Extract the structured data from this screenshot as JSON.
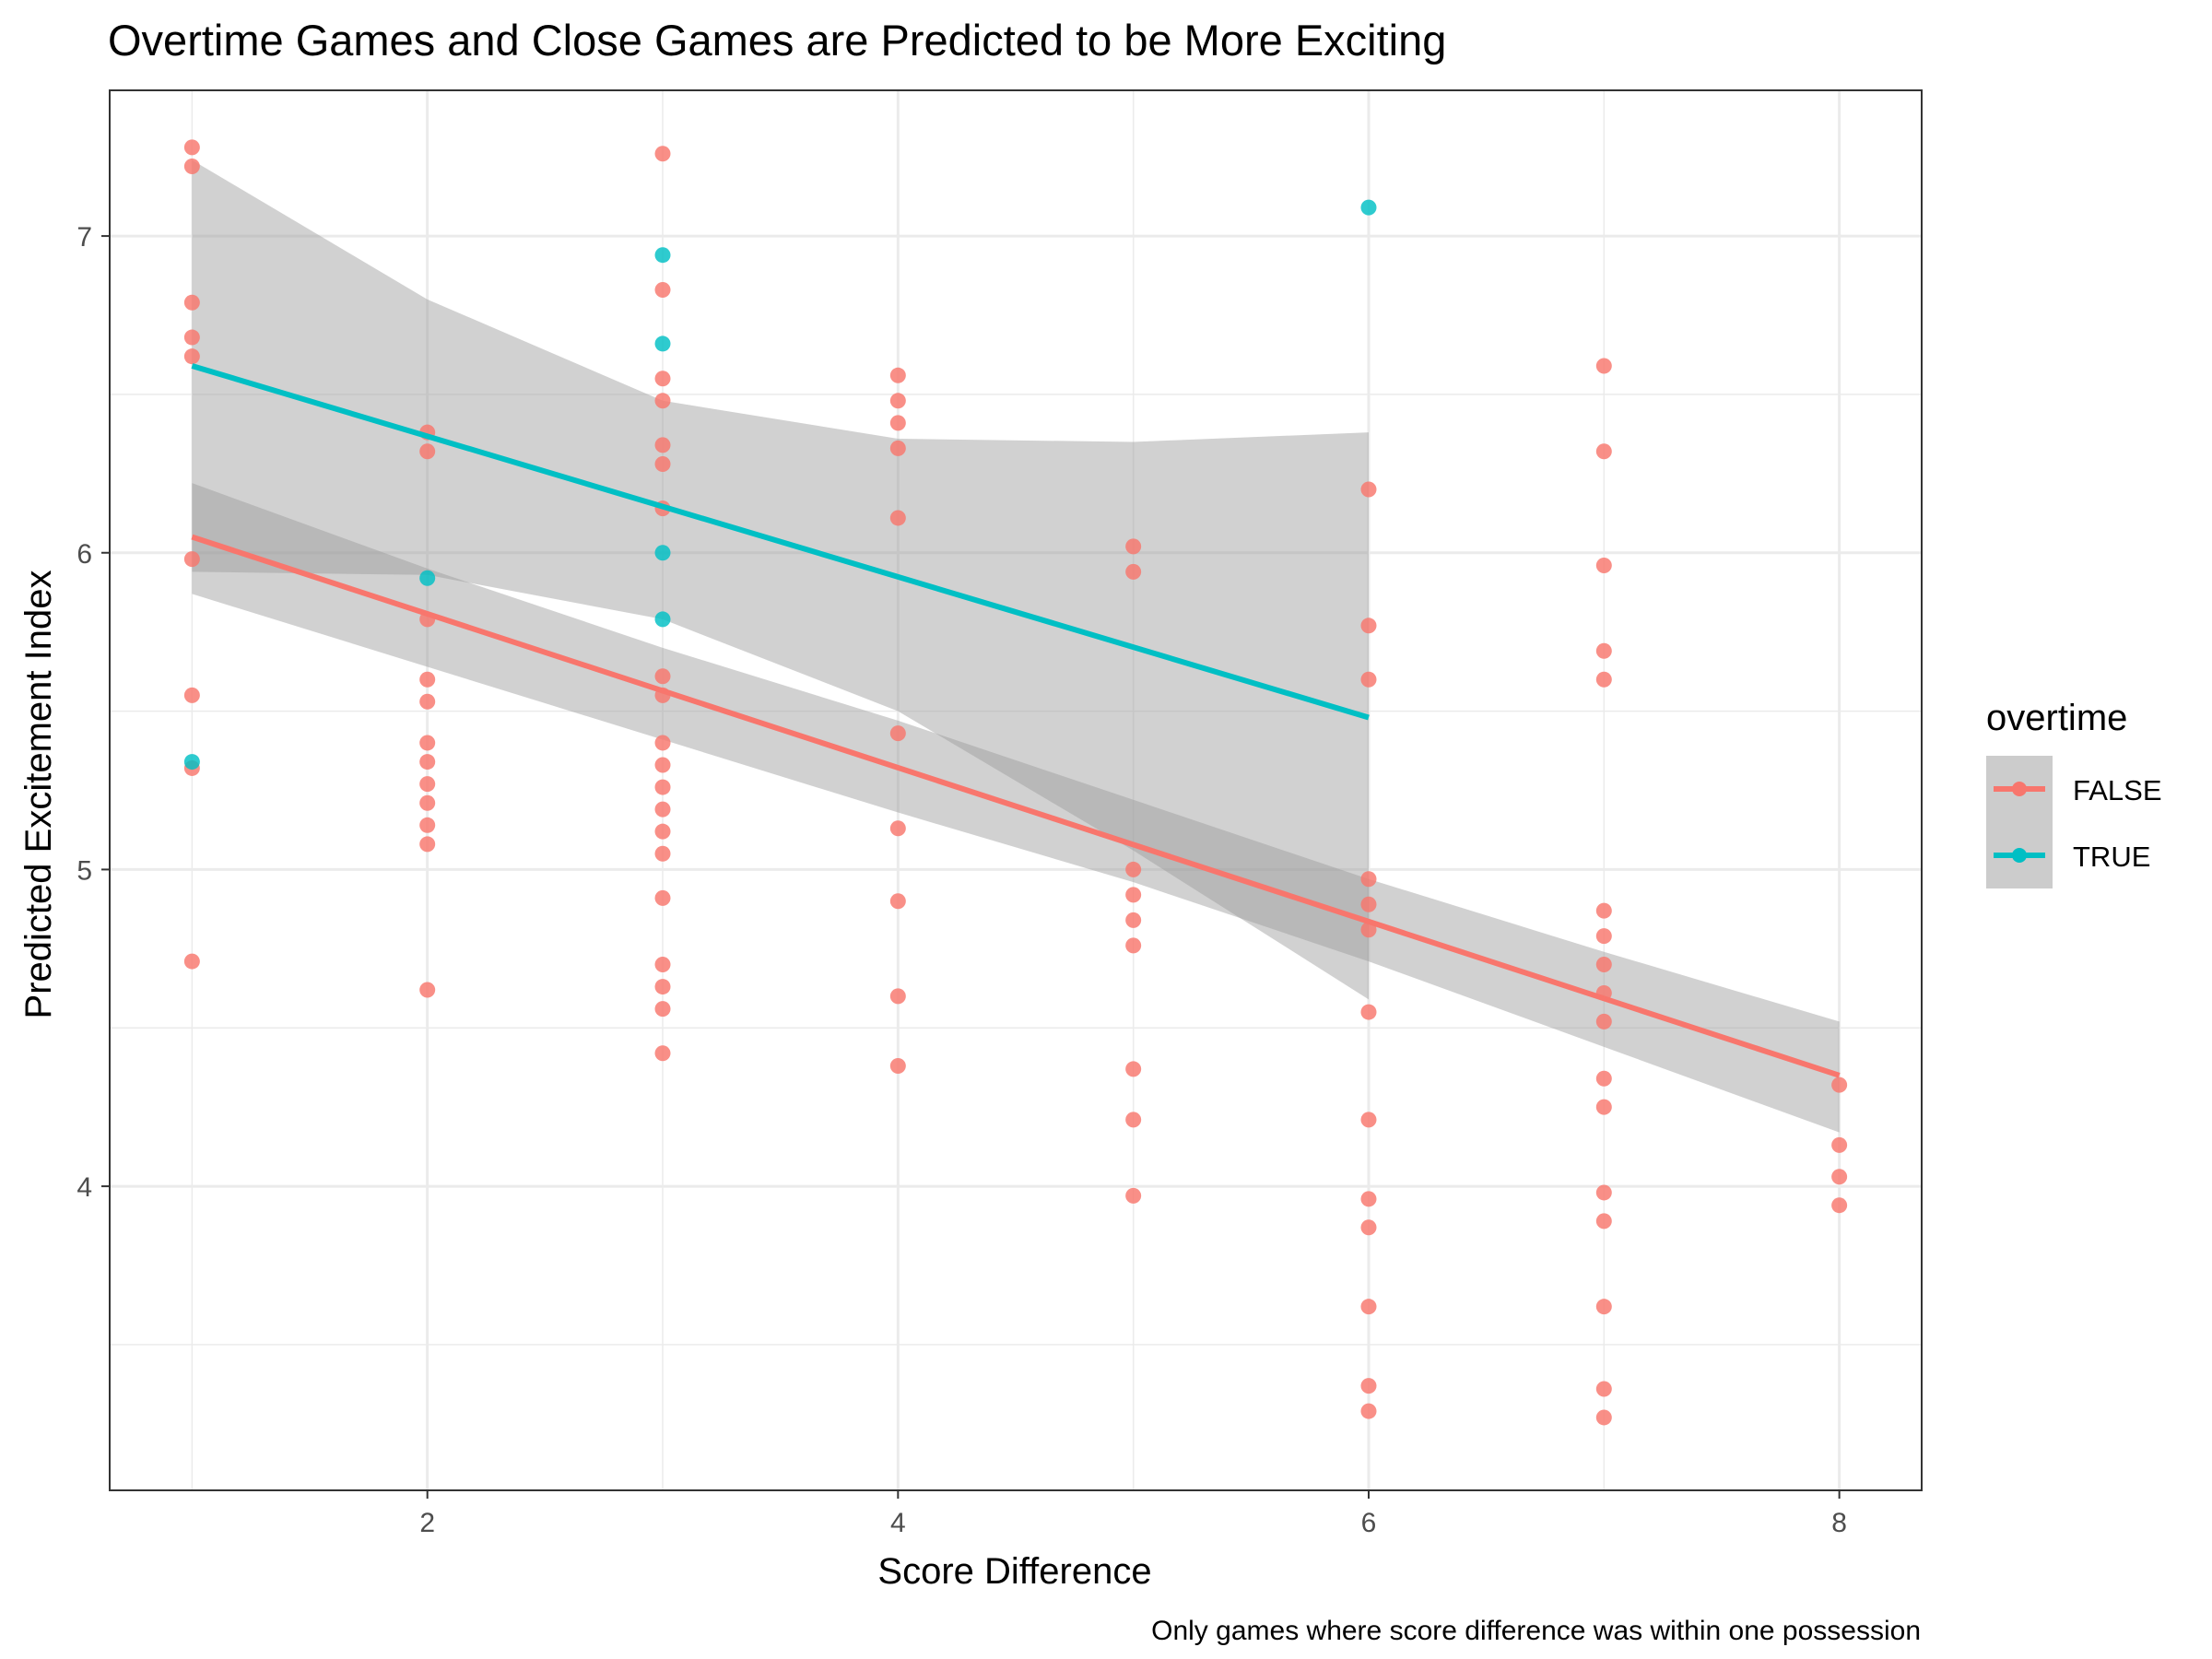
{
  "chart_data": {
    "type": "scatter",
    "title": "Overtime Games and Close Games are Predicted to be More Exciting",
    "xlabel": "Score Difference",
    "ylabel": "Predicted Excitement Index",
    "caption": "Only games where score difference was within one possession",
    "xlim": [
      0.65,
      8.35
    ],
    "ylim": [
      3.04,
      7.46
    ],
    "x_ticks": [
      2,
      4,
      6,
      8
    ],
    "y_ticks": [
      4,
      5,
      6,
      7
    ],
    "grid": true,
    "legend": {
      "title": "overtime",
      "placement": "right",
      "entries": [
        "FALSE",
        "TRUE"
      ]
    },
    "series": [
      {
        "name": "FALSE",
        "color": "#F8766D",
        "points": [
          [
            1,
            7.28
          ],
          [
            1,
            7.22
          ],
          [
            1,
            6.79
          ],
          [
            1,
            6.68
          ],
          [
            1,
            6.62
          ],
          [
            1,
            5.98
          ],
          [
            1,
            5.55
          ],
          [
            1,
            5.32
          ],
          [
            1,
            4.71
          ],
          [
            2,
            6.38
          ],
          [
            2,
            6.32
          ],
          [
            2,
            5.79
          ],
          [
            2,
            5.6
          ],
          [
            2,
            5.53
          ],
          [
            2,
            5.4
          ],
          [
            2,
            5.34
          ],
          [
            2,
            5.27
          ],
          [
            2,
            5.21
          ],
          [
            2,
            5.14
          ],
          [
            2,
            5.08
          ],
          [
            2,
            4.62
          ],
          [
            3,
            7.26
          ],
          [
            3,
            6.83
          ],
          [
            3,
            6.55
          ],
          [
            3,
            6.48
          ],
          [
            3,
            6.34
          ],
          [
            3,
            6.28
          ],
          [
            3,
            6.14
          ],
          [
            3,
            5.61
          ],
          [
            3,
            5.55
          ],
          [
            3,
            5.4
          ],
          [
            3,
            5.33
          ],
          [
            3,
            5.26
          ],
          [
            3,
            5.19
          ],
          [
            3,
            5.12
          ],
          [
            3,
            5.05
          ],
          [
            3,
            4.91
          ],
          [
            3,
            4.7
          ],
          [
            3,
            4.63
          ],
          [
            3,
            4.56
          ],
          [
            3,
            4.42
          ],
          [
            4,
            6.56
          ],
          [
            4,
            6.48
          ],
          [
            4,
            6.41
          ],
          [
            4,
            6.33
          ],
          [
            4,
            6.11
          ],
          [
            4,
            5.43
          ],
          [
            4,
            5.13
          ],
          [
            4,
            4.9
          ],
          [
            4,
            4.6
          ],
          [
            4,
            4.38
          ],
          [
            5,
            6.02
          ],
          [
            5,
            5.94
          ],
          [
            5,
            5.0
          ],
          [
            5,
            4.92
          ],
          [
            5,
            4.84
          ],
          [
            5,
            4.76
          ],
          [
            5,
            4.37
          ],
          [
            5,
            4.21
          ],
          [
            5,
            3.97
          ],
          [
            6,
            6.2
          ],
          [
            6,
            5.77
          ],
          [
            6,
            5.6
          ],
          [
            6,
            4.97
          ],
          [
            6,
            4.89
          ],
          [
            6,
            4.81
          ],
          [
            6,
            4.55
          ],
          [
            6,
            4.21
          ],
          [
            6,
            3.96
          ],
          [
            6,
            3.87
          ],
          [
            6,
            3.62
          ],
          [
            6,
            3.37
          ],
          [
            6,
            3.29
          ],
          [
            7,
            6.59
          ],
          [
            7,
            6.32
          ],
          [
            7,
            5.96
          ],
          [
            7,
            5.69
          ],
          [
            7,
            5.6
          ],
          [
            7,
            4.87
          ],
          [
            7,
            4.79
          ],
          [
            7,
            4.7
          ],
          [
            7,
            4.61
          ],
          [
            7,
            4.52
          ],
          [
            7,
            4.34
          ],
          [
            7,
            4.25
          ],
          [
            7,
            3.98
          ],
          [
            7,
            3.89
          ],
          [
            7,
            3.62
          ],
          [
            7,
            3.36
          ],
          [
            7,
            3.27
          ],
          [
            8,
            4.32
          ],
          [
            8,
            4.13
          ],
          [
            8,
            4.03
          ],
          [
            8,
            3.94
          ]
        ],
        "fit": {
          "x": [
            1,
            8
          ],
          "y": [
            6.05,
            4.35
          ]
        },
        "ci_upper": [
          [
            1,
            6.22
          ],
          [
            2,
            5.95
          ],
          [
            3,
            5.7
          ],
          [
            4,
            5.47
          ],
          [
            5,
            5.22
          ],
          [
            6,
            4.97
          ],
          [
            7,
            4.74
          ],
          [
            8,
            4.52
          ]
        ],
        "ci_lower": [
          [
            1,
            5.87
          ],
          [
            2,
            5.64
          ],
          [
            3,
            5.41
          ],
          [
            4,
            5.18
          ],
          [
            5,
            4.96
          ],
          [
            6,
            4.71
          ],
          [
            7,
            4.44
          ],
          [
            8,
            4.17
          ]
        ]
      },
      {
        "name": "TRUE",
        "color": "#00BFC4",
        "points": [
          [
            1,
            5.34
          ],
          [
            2,
            5.92
          ],
          [
            3,
            6.94
          ],
          [
            3,
            6.66
          ],
          [
            3,
            6.0
          ],
          [
            3,
            5.79
          ],
          [
            6,
            7.09
          ]
        ],
        "fit": {
          "x": [
            1,
            6
          ],
          "y": [
            6.59,
            5.48
          ]
        },
        "ci_upper": [
          [
            1,
            7.24
          ],
          [
            2,
            6.8
          ],
          [
            3,
            6.48
          ],
          [
            4,
            6.36
          ],
          [
            5,
            6.35
          ],
          [
            6,
            6.38
          ]
        ],
        "ci_lower": [
          [
            1,
            5.94
          ],
          [
            2,
            5.93
          ],
          [
            3,
            5.79
          ],
          [
            4,
            5.5
          ],
          [
            5,
            5.06
          ],
          [
            6,
            4.59
          ]
        ]
      }
    ]
  }
}
